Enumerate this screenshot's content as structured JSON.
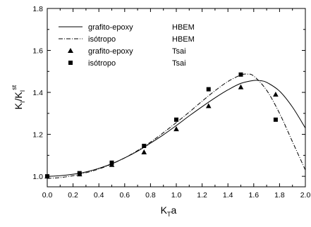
{
  "chart_data": {
    "type": "line",
    "xlabel": {
      "main": "K",
      "sub": "T",
      "tail": "a"
    },
    "ylabel": {
      "main": "K",
      "sub": "I",
      "mid": "/K",
      "sub2": "I",
      "sup": "st"
    },
    "xlim": [
      0.0,
      2.0
    ],
    "ylim": [
      0.95,
      1.8
    ],
    "x_ticks": [
      "0.0",
      "0.2",
      "0.4",
      "0.6",
      "0.8",
      "1.0",
      "1.2",
      "1.4",
      "1.6",
      "1.8",
      "2.0"
    ],
    "y_ticks": [
      "1.0",
      "1.2",
      "1.4",
      "1.6",
      "1.8"
    ],
    "legend": {
      "position": "top-left",
      "entries": [
        {
          "label": "grafito-epoxy",
          "method": "HBEM",
          "marker": "solid-line"
        },
        {
          "label": "isótropo",
          "method": "HBEM",
          "marker": "dash-dot-line"
        },
        {
          "label": "grafito-epoxy",
          "method": "Tsai",
          "marker": "triangle"
        },
        {
          "label": "isótropo",
          "method": "Tsai",
          "marker": "square"
        }
      ]
    },
    "series": [
      {
        "name": "grafito-epoxy HBEM",
        "style": "solid",
        "x": [
          0.0,
          0.1,
          0.2,
          0.3,
          0.4,
          0.5,
          0.6,
          0.7,
          0.8,
          0.9,
          1.0,
          1.1,
          1.2,
          1.3,
          1.4,
          1.5,
          1.6,
          1.65,
          1.7,
          1.8,
          1.9,
          2.0
        ],
        "y": [
          1.0,
          1.003,
          1.01,
          1.021,
          1.038,
          1.06,
          1.088,
          1.12,
          1.158,
          1.198,
          1.242,
          1.288,
          1.332,
          1.374,
          1.412,
          1.443,
          1.457,
          1.456,
          1.448,
          1.406,
          1.33,
          1.23
        ]
      },
      {
        "name": "isótropo HBEM",
        "style": "dash-dot",
        "x": [
          0.0,
          0.1,
          0.2,
          0.3,
          0.4,
          0.5,
          0.6,
          0.7,
          0.8,
          0.9,
          1.0,
          1.1,
          1.2,
          1.3,
          1.4,
          1.5,
          1.55,
          1.6,
          1.7,
          1.8,
          1.9,
          2.0
        ],
        "y": [
          0.99,
          0.994,
          1.003,
          1.017,
          1.035,
          1.059,
          1.088,
          1.123,
          1.163,
          1.208,
          1.256,
          1.306,
          1.358,
          1.408,
          1.452,
          1.483,
          1.487,
          1.478,
          1.41,
          1.3,
          1.165,
          1.03
        ]
      },
      {
        "name": "grafito-epoxy Tsai",
        "style": "triangle",
        "x": [
          0.0,
          0.25,
          0.5,
          0.75,
          1.0,
          1.25,
          1.5,
          1.77
        ],
        "y": [
          1.0,
          1.01,
          1.055,
          1.115,
          1.225,
          1.335,
          1.425,
          1.39
        ]
      },
      {
        "name": "isótropo Tsai",
        "style": "square",
        "x": [
          0.0,
          0.25,
          0.5,
          0.75,
          1.0,
          1.25,
          1.5,
          1.77
        ],
        "y": [
          1.0,
          1.015,
          1.065,
          1.145,
          1.27,
          1.415,
          1.485,
          1.27
        ]
      }
    ]
  }
}
